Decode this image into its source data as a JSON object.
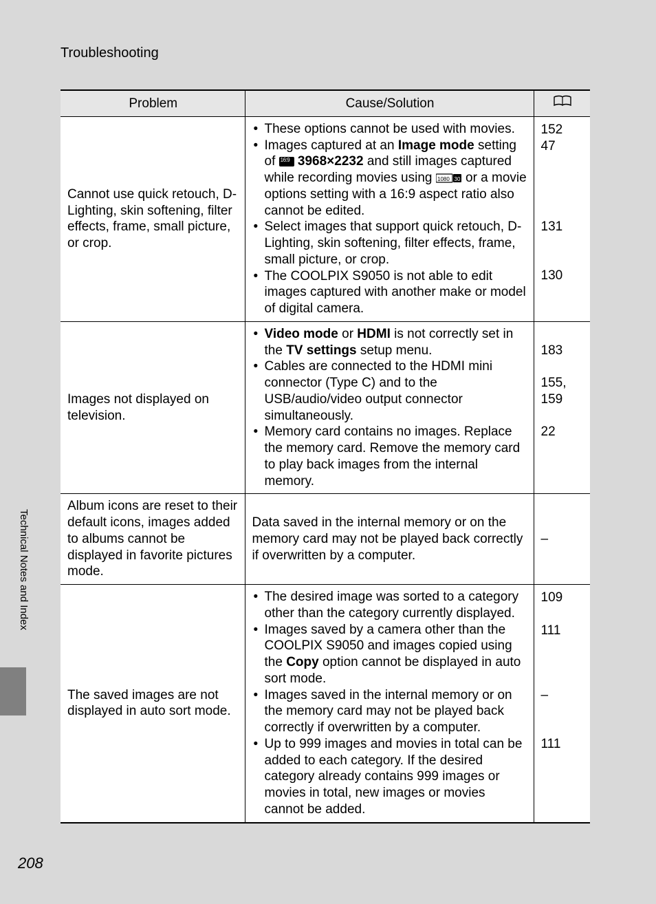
{
  "heading": "Troubleshooting",
  "side_label": "Technical Notes and Index",
  "page_number": "208",
  "columns": {
    "problem": "Problem",
    "cause": "Cause/Solution",
    "ref_icon": "book"
  },
  "rows": [
    {
      "problem": "Cannot use quick retouch, D-Lighting, skin softening, filter effects, frame, small picture, or crop.",
      "cause_items": [
        {
          "html": "These options cannot be used with movies."
        },
        {
          "html": "Images captured at an <span class=\"bold\">Image mode</span> setting of <span class=\"icon16\" data-name=\"aspect-16-9-icon\" data-interactable=\"false\"></span> <span class=\"bold\">3968×2232</span> and still images captured while recording movies using <span class=\"icon1080\" data-name=\"movie-1080-icon\" data-interactable=\"false\"><svg viewBox=\"0 0 38 14\"><rect x=\"0\" y=\"1\" width=\"24\" height=\"12\" rx=\"1\" fill=\"none\" stroke=\"#000\" stroke-width=\"1.2\"/><text x=\"2\" y=\"11\" font-size=\"8\" font-family=\"Arial\" fill=\"#000\">1080</text><rect x=\"25\" y=\"1\" width=\"12\" height=\"12\" rx=\"1\" fill=\"#000\"/><text x=\"26.5\" y=\"11\" font-size=\"8\" font-family=\"Arial\" fill=\"#fff\">30</text></svg></span> or a movie options setting with a 16:9 aspect ratio also cannot be edited."
        },
        {
          "html": "Select images that support quick retouch, D-Lighting, skin softening, filter effects, frame, small picture, or crop."
        },
        {
          "html": "The COOLPIX S9050 is not able to edit images captured with another make or model of digital camera."
        }
      ],
      "refs": [
        "152",
        "47",
        "",
        "",
        "",
        "",
        "131",
        "",
        "",
        "130",
        "",
        ""
      ]
    },
    {
      "problem": "Images not displayed on television.",
      "cause_items": [
        {
          "html": "<span class=\"bold\">Video mode</span> or <span class=\"bold\">HDMI</span> is not correctly set in the <span class=\"bold\">TV settings</span> setup menu."
        },
        {
          "html": "Cables are connected to the HDMI mini connector (Type C) and to the USB/audio/video output connector simultaneously."
        },
        {
          "html": "Memory card contains no images. Replace the memory card. Remove the memory card to play back images from the internal memory."
        }
      ],
      "refs": [
        "183",
        "",
        "155,",
        "159",
        "",
        "22",
        "",
        ""
      ]
    },
    {
      "problem": "Album icons are reset to their default icons, images added to albums cannot be displayed in favorite pictures mode.",
      "cause_plain": "Data saved in the internal memory or on the memory card may not be played back correctly if overwritten by a computer.",
      "refs": [
        "–"
      ]
    },
    {
      "problem": "The saved images are not displayed in auto sort mode.",
      "cause_items": [
        {
          "html": "The desired image was sorted to a category other than the category currently displayed."
        },
        {
          "html": "Images saved by a camera other than the COOLPIX S9050 and images copied using the <span class=\"bold\">Copy</span> option cannot be displayed in auto sort mode."
        },
        {
          "html": "Images saved in the internal memory or on the memory card may not be played back correctly if overwritten by a computer."
        },
        {
          "html": "Up to 999 images and movies in total can be added to each category. If the desired category already contains 999 images or movies in total, new images or movies cannot be added."
        }
      ],
      "refs": [
        "109",
        "",
        "111",
        "",
        "",
        "",
        "–",
        "",
        "",
        "111",
        "",
        "",
        "",
        ""
      ]
    }
  ]
}
